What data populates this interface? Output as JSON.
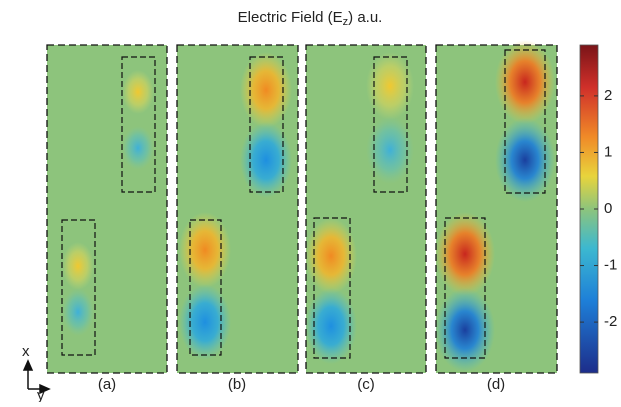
{
  "chart_data": {
    "type": "heatmap",
    "title": {
      "main": "Electric Field (E",
      "sub": "z",
      "end": ") a.u."
    },
    "panels": [
      "(a)",
      "(b)",
      "(c)",
      "(d)"
    ],
    "axes": {
      "x": "x",
      "y": "y"
    },
    "colorbar": {
      "clim": [
        -2.9,
        2.9
      ],
      "ticks": [
        2,
        1,
        0,
        -1,
        -2
      ]
    }
  }
}
